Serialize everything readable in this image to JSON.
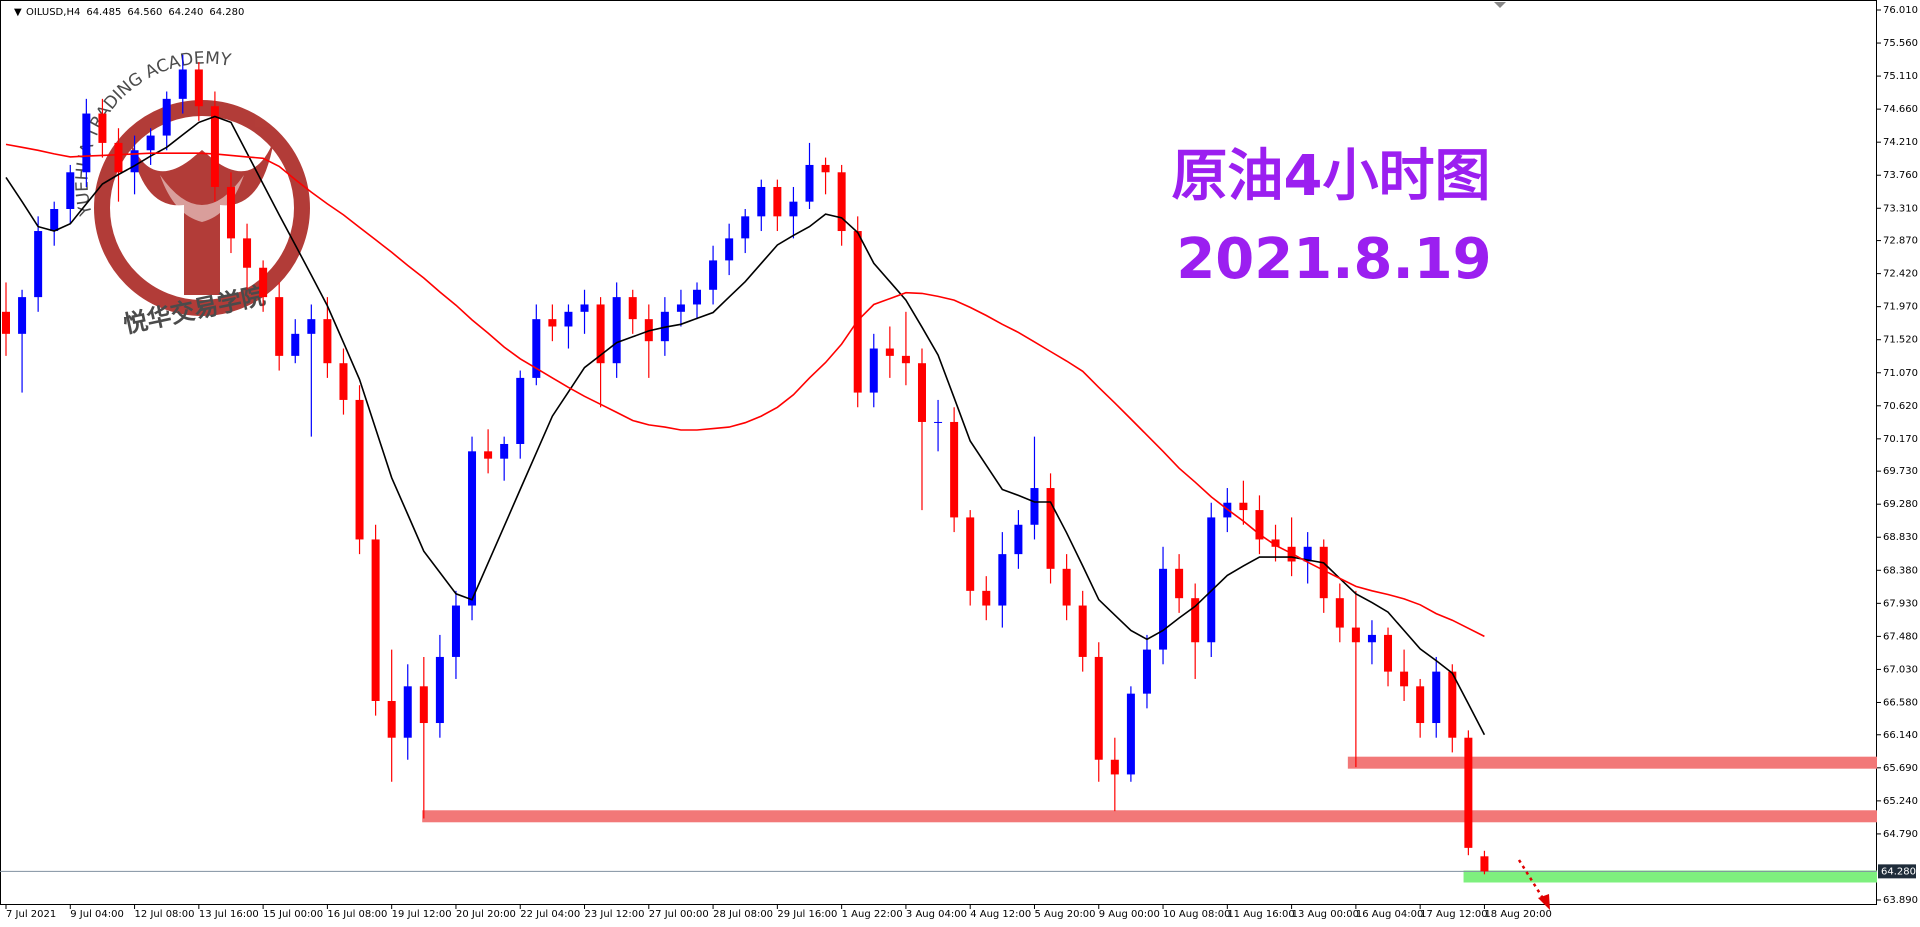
{
  "chart_data": {
    "type": "candlestick",
    "symbol": "OILUSD,H4",
    "header_values": [
      "64.485",
      "64.560",
      "64.240",
      "64.280"
    ],
    "title": "原油4小时图",
    "subtitle": "2021.8.19",
    "watermark_top": "YUEHUA TRADING ACADEMY",
    "watermark_bottom": "悦华交易学院",
    "up_color": "#0000ff",
    "down_color": "#ff0000",
    "title_color": "#9b1ff0",
    "ylim": [
      63.89,
      76.01
    ],
    "yticks": [
      {
        "value": 76.01,
        "label": "76.010"
      },
      {
        "value": 75.56,
        "label": "75.560"
      },
      {
        "value": 75.11,
        "label": "75.110"
      },
      {
        "value": 74.66,
        "label": "74.660"
      },
      {
        "value": 74.21,
        "label": "74.210"
      },
      {
        "value": 73.76,
        "label": "73.760"
      },
      {
        "value": 73.31,
        "label": "73.310"
      },
      {
        "value": 72.87,
        "label": "72.870"
      },
      {
        "value": 72.42,
        "label": "72.420"
      },
      {
        "value": 71.97,
        "label": "71.970"
      },
      {
        "value": 71.52,
        "label": "71.520"
      },
      {
        "value": 71.07,
        "label": "71.070"
      },
      {
        "value": 70.62,
        "label": "70.620"
      },
      {
        "value": 70.17,
        "label": "70.170"
      },
      {
        "value": 69.73,
        "label": "69.730"
      },
      {
        "value": 69.28,
        "label": "69.280"
      },
      {
        "value": 68.83,
        "label": "68.830"
      },
      {
        "value": 68.38,
        "label": "68.380"
      },
      {
        "value": 67.93,
        "label": "67.930"
      },
      {
        "value": 67.48,
        "label": "67.480"
      },
      {
        "value": 67.03,
        "label": "67.030"
      },
      {
        "value": 66.58,
        "label": "66.580"
      },
      {
        "value": 66.14,
        "label": "66.140"
      },
      {
        "value": 65.69,
        "label": "65.690"
      },
      {
        "value": 65.24,
        "label": "65.240"
      },
      {
        "value": 64.79,
        "label": "64.790"
      },
      {
        "value": 63.89,
        "label": "63.890"
      }
    ],
    "last_price": {
      "value": 64.28,
      "label": "64.280"
    },
    "xtick_labels": [
      "7 Jul 2021",
      "9 Jul 04:00",
      "12 Jul 08:00",
      "13 Jul 16:00",
      "15 Jul 00:00",
      "16 Jul 08:00",
      "19 Jul 12:00",
      "20 Jul 20:00",
      "22 Jul 04:00",
      "23 Jul 12:00",
      "27 Jul 00:00",
      "28 Jul 08:00",
      "29 Jul 16:00",
      "1 Aug 22:00",
      "3 Aug 04:00",
      "4 Aug 12:00",
      "5 Aug 20:00",
      "9 Aug 00:00",
      "10 Aug 08:00",
      "11 Aug 16:00",
      "13 Aug 00:00",
      "16 Aug 04:00",
      "17 Aug 12:00",
      "18 Aug 20:00"
    ],
    "candles": [
      [
        71.9,
        72.3,
        71.3,
        71.6
      ],
      [
        71.6,
        72.2,
        70.8,
        72.1
      ],
      [
        72.1,
        73.2,
        71.9,
        73.0
      ],
      [
        73.0,
        73.4,
        72.8,
        73.3
      ],
      [
        73.3,
        73.9,
        73.1,
        73.8
      ],
      [
        73.8,
        74.8,
        73.6,
        74.6
      ],
      [
        74.6,
        74.8,
        74.0,
        74.2
      ],
      [
        74.2,
        74.4,
        73.4,
        73.8
      ],
      [
        73.8,
        74.3,
        73.5,
        74.1
      ],
      [
        74.1,
        74.4,
        73.9,
        74.3
      ],
      [
        74.3,
        74.9,
        74.1,
        74.8
      ],
      [
        74.8,
        75.4,
        74.6,
        75.2
      ],
      [
        75.2,
        75.3,
        74.5,
        74.7
      ],
      [
        74.7,
        74.9,
        73.4,
        73.6
      ],
      [
        73.6,
        73.8,
        72.7,
        72.9
      ],
      [
        72.9,
        73.1,
        72.2,
        72.5
      ],
      [
        72.5,
        72.6,
        71.9,
        72.1
      ],
      [
        72.1,
        72.3,
        71.1,
        71.3
      ],
      [
        71.3,
        71.8,
        71.2,
        71.6
      ],
      [
        71.6,
        72.0,
        70.2,
        71.8
      ],
      [
        71.8,
        72.1,
        71.0,
        71.2
      ],
      [
        71.2,
        71.4,
        70.5,
        70.7
      ],
      [
        70.7,
        70.9,
        68.6,
        68.8
      ],
      [
        68.8,
        69.0,
        66.4,
        66.6
      ],
      [
        66.6,
        67.3,
        65.5,
        66.1
      ],
      [
        66.1,
        67.1,
        65.8,
        66.8
      ],
      [
        66.8,
        67.2,
        65.0,
        66.3
      ],
      [
        66.3,
        67.5,
        66.1,
        67.2
      ],
      [
        67.2,
        68.1,
        66.9,
        67.9
      ],
      [
        67.9,
        70.2,
        67.7,
        70.0
      ],
      [
        70.0,
        70.3,
        69.7,
        69.9
      ],
      [
        69.9,
        70.2,
        69.6,
        70.1
      ],
      [
        70.1,
        71.1,
        69.9,
        71.0
      ],
      [
        71.0,
        72.0,
        70.9,
        71.8
      ],
      [
        71.8,
        72.0,
        71.5,
        71.7
      ],
      [
        71.7,
        72.0,
        71.4,
        71.9
      ],
      [
        71.9,
        72.2,
        71.6,
        72.0
      ],
      [
        72.0,
        72.1,
        70.6,
        71.2
      ],
      [
        71.2,
        72.3,
        71.0,
        72.1
      ],
      [
        72.1,
        72.2,
        71.6,
        71.8
      ],
      [
        71.8,
        72.0,
        71.0,
        71.5
      ],
      [
        71.5,
        72.1,
        71.3,
        71.9
      ],
      [
        71.9,
        72.2,
        71.7,
        72.0
      ],
      [
        72.0,
        72.3,
        71.8,
        72.2
      ],
      [
        72.2,
        72.8,
        72.0,
        72.6
      ],
      [
        72.6,
        73.1,
        72.4,
        72.9
      ],
      [
        72.9,
        73.3,
        72.7,
        73.2
      ],
      [
        73.2,
        73.7,
        73.0,
        73.6
      ],
      [
        73.6,
        73.7,
        73.0,
        73.2
      ],
      [
        73.2,
        73.6,
        72.9,
        73.4
      ],
      [
        73.4,
        74.2,
        73.3,
        73.9
      ],
      [
        73.9,
        74.0,
        73.5,
        73.8
      ],
      [
        73.8,
        73.9,
        72.8,
        73.0
      ],
      [
        73.0,
        73.2,
        70.6,
        70.8
      ],
      [
        70.8,
        71.6,
        70.6,
        71.4
      ],
      [
        71.4,
        71.7,
        71.0,
        71.3
      ],
      [
        71.3,
        71.9,
        70.9,
        71.2
      ],
      [
        71.2,
        71.4,
        69.2,
        70.4
      ],
      [
        70.4,
        70.7,
        70.0,
        70.4
      ],
      [
        70.4,
        70.6,
        68.9,
        69.1
      ],
      [
        69.1,
        69.2,
        67.9,
        68.1
      ],
      [
        68.1,
        68.3,
        67.7,
        67.9
      ],
      [
        67.9,
        68.9,
        67.6,
        68.6
      ],
      [
        68.6,
        69.2,
        68.4,
        69.0
      ],
      [
        69.0,
        70.2,
        68.8,
        69.5
      ],
      [
        69.5,
        69.7,
        68.2,
        68.4
      ],
      [
        68.4,
        68.6,
        67.7,
        67.9
      ],
      [
        67.9,
        68.1,
        67.0,
        67.2
      ],
      [
        67.2,
        67.4,
        65.5,
        65.8
      ],
      [
        65.8,
        66.1,
        65.1,
        65.6
      ],
      [
        65.6,
        66.8,
        65.5,
        66.7
      ],
      [
        66.7,
        67.5,
        66.5,
        67.3
      ],
      [
        67.3,
        68.7,
        67.1,
        68.4
      ],
      [
        68.4,
        68.6,
        67.8,
        68.0
      ],
      [
        68.0,
        68.2,
        66.9,
        67.4
      ],
      [
        67.4,
        69.3,
        67.2,
        69.1
      ],
      [
        69.1,
        69.5,
        68.9,
        69.3
      ],
      [
        69.3,
        69.6,
        69.0,
        69.2
      ],
      [
        69.2,
        69.4,
        68.6,
        68.8
      ],
      [
        68.8,
        69.0,
        68.5,
        68.7
      ],
      [
        68.7,
        69.1,
        68.3,
        68.5
      ],
      [
        68.5,
        68.9,
        68.2,
        68.7
      ],
      [
        68.7,
        68.8,
        67.8,
        68.0
      ],
      [
        68.0,
        68.2,
        67.4,
        67.6
      ],
      [
        67.6,
        68.1,
        65.7,
        67.4
      ],
      [
        67.4,
        67.7,
        67.1,
        67.5
      ],
      [
        67.5,
        67.6,
        66.8,
        67.0
      ],
      [
        67.0,
        67.3,
        66.6,
        66.8
      ],
      [
        66.8,
        66.9,
        66.1,
        66.3
      ],
      [
        66.3,
        67.2,
        66.1,
        67.0
      ],
      [
        67.0,
        67.1,
        65.9,
        66.1
      ],
      [
        66.1,
        66.2,
        64.5,
        64.6
      ],
      [
        64.485,
        64.56,
        64.24,
        64.28
      ]
    ],
    "moving_averages": [
      {
        "color": "#000000",
        "values": [
          73.73,
          73.4,
          73.06,
          73.0,
          73.1,
          73.37,
          73.64,
          73.77,
          73.89,
          74.02,
          74.14,
          74.31,
          74.48,
          74.56,
          74.48,
          74.06,
          73.64,
          73.22,
          72.81,
          72.4,
          71.98,
          71.48,
          70.98,
          70.31,
          69.64,
          69.14,
          68.64,
          68.35,
          68.06,
          67.98,
          68.48,
          68.98,
          69.48,
          69.98,
          70.48,
          70.81,
          71.14,
          71.31,
          71.48,
          71.56,
          71.64,
          71.69,
          71.73,
          71.81,
          71.89,
          72.1,
          72.31,
          72.56,
          72.81,
          72.94,
          73.06,
          73.23,
          73.18,
          72.98,
          72.56,
          72.31,
          72.06,
          71.69,
          71.31,
          70.73,
          70.14,
          69.81,
          69.48,
          69.4,
          69.31,
          69.31,
          68.89,
          68.44,
          67.98,
          67.77,
          67.56,
          67.44,
          67.56,
          67.73,
          67.89,
          68.1,
          68.31,
          68.44,
          68.56,
          68.56,
          68.56,
          68.52,
          68.48,
          68.27,
          68.06,
          67.94,
          67.81,
          67.56,
          67.31,
          67.15,
          66.98,
          66.56,
          66.14
        ]
      },
      {
        "color": "#ff0000",
        "values": [
          74.18,
          74.14,
          74.1,
          74.05,
          74.01,
          74.02,
          74.03,
          74.04,
          74.05,
          74.06,
          74.06,
          74.06,
          74.06,
          74.05,
          74.03,
          74.01,
          73.99,
          73.88,
          73.7,
          73.53,
          73.37,
          73.22,
          73.05,
          72.88,
          72.71,
          72.53,
          72.36,
          72.17,
          71.99,
          71.79,
          71.61,
          71.42,
          71.26,
          71.13,
          71.0,
          70.87,
          70.75,
          70.64,
          70.53,
          70.42,
          70.36,
          70.33,
          70.29,
          70.29,
          70.31,
          70.33,
          70.39,
          70.48,
          70.6,
          70.77,
          71.0,
          71.21,
          71.46,
          71.78,
          72.0,
          72.08,
          72.16,
          72.15,
          72.11,
          72.06,
          71.96,
          71.85,
          71.73,
          71.62,
          71.49,
          71.36,
          71.23,
          71.09,
          70.87,
          70.66,
          70.44,
          70.22,
          70.0,
          69.77,
          69.58,
          69.38,
          69.21,
          69.05,
          68.87,
          68.72,
          68.61,
          68.49,
          68.38,
          68.27,
          68.16,
          68.1,
          68.05,
          67.99,
          67.91,
          67.79,
          67.7,
          67.59,
          67.48
        ]
      }
    ],
    "zones": [
      {
        "level": 65.76,
        "color": "#f27878"
      },
      {
        "level": 65.03,
        "color": "#f27878"
      },
      {
        "level": 64.21,
        "color": "#7ef07e"
      }
    ]
  }
}
